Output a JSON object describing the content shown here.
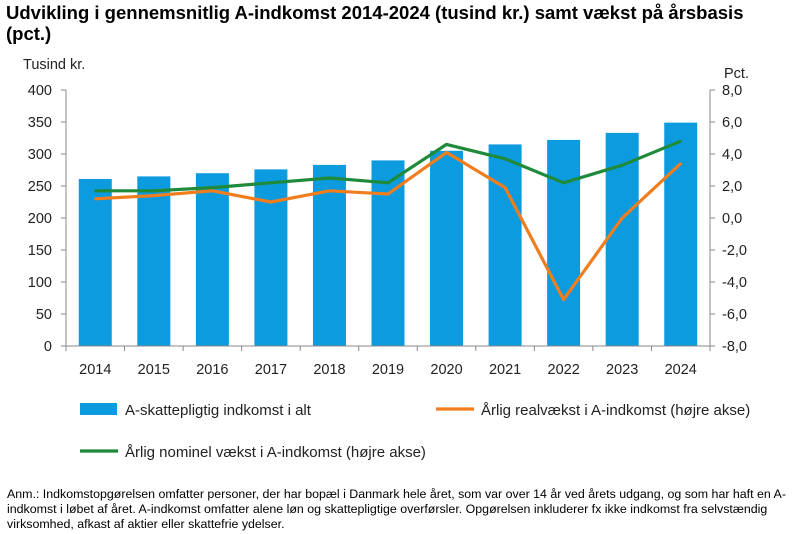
{
  "title_line1": "Udvikling i gennemsnitlig A-indkomst 2014-2024 (tusind kr.) samt vækst på årsbasis",
  "title_line2": "(pct.)",
  "note": "Anm.: Indkomstopgørelsen omfatter personer, der har bopæl i Danmark hele året, som var over 14 år ved årets udgang, og som har haft en A-indkomst i løbet af året. A-indkomst omfatter alene løn og skattepligtige overførsler. Opgørelsen inkluderer fx ikke indkomst fra selvstændig virksomhed, afkast af aktier eller skattefrie ydelser.",
  "colors": {
    "bar": "#0C9BDE",
    "real": "#F07D1E",
    "nominal": "#1E8A3A",
    "axis": "#888888"
  },
  "chart_data": {
    "type": "bar",
    "categories": [
      "2014",
      "2015",
      "2016",
      "2017",
      "2018",
      "2019",
      "2020",
      "2021",
      "2022",
      "2023",
      "2024"
    ],
    "y_left_label": "Tusind kr.",
    "y_right_label": "Pct.",
    "ylim_left": [
      0,
      400
    ],
    "ylim_right": [
      -8,
      8
    ],
    "yticks_left": [
      "0",
      "50",
      "100",
      "150",
      "200",
      "250",
      "300",
      "350",
      "400"
    ],
    "yticks_right": [
      "-8,0",
      "-6,0",
      "-4,0",
      "-2,0",
      "0,0",
      "2,0",
      "4,0",
      "6,0",
      "8,0"
    ],
    "grid": false,
    "legend_position": "bottom",
    "series": [
      {
        "name": "A-skattepligtig indkomst i alt",
        "type": "bar",
        "axis": "left",
        "values": [
          261,
          265,
          270,
          276,
          283,
          290,
          305,
          315,
          322,
          333,
          349
        ]
      },
      {
        "name": "Årlig realvækst i A-indkomst (højre akse)",
        "type": "line",
        "axis": "right",
        "values": [
          1.2,
          1.4,
          1.7,
          1.0,
          1.7,
          1.5,
          4.1,
          1.9,
          -5.1,
          0.0,
          3.4
        ]
      },
      {
        "name": "Årlig nominel vækst i A-indkomst (højre akse)",
        "type": "line",
        "axis": "right",
        "values": [
          1.7,
          1.7,
          1.9,
          2.2,
          2.5,
          2.2,
          4.6,
          3.7,
          2.2,
          3.3,
          4.8
        ]
      }
    ]
  }
}
